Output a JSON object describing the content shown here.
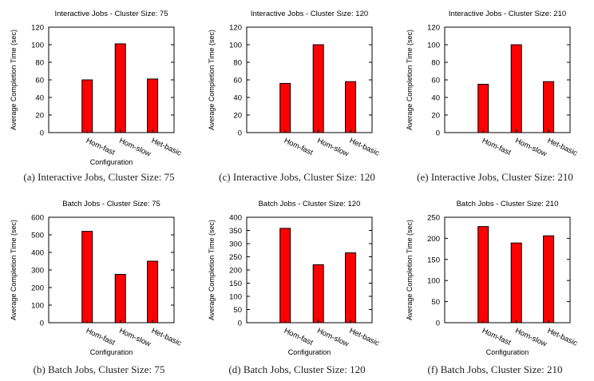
{
  "chart_data": [
    {
      "type": "bar",
      "title": "Interactive Jobs - Cluster Size: 75",
      "xlabel": "Configuration",
      "ylabel": "Average Completion Time (sec)",
      "categories": [
        "Hom-fast",
        "Hom-slow",
        "Het-basic"
      ],
      "values": [
        60,
        101,
        61
      ],
      "ylim": [
        0,
        120
      ],
      "yticks": [
        0,
        20,
        40,
        60,
        80,
        100,
        120
      ],
      "color": "#ff0000",
      "grid": false,
      "caption": "(a) Interactive Jobs, Cluster Size: 75"
    },
    {
      "type": "bar",
      "title": "Interactive Jobs - Cluster Size: 120",
      "xlabel": "",
      "ylabel": "Average Completion Time (sec)",
      "categories": [
        "Hom-fast",
        "Hom-slow",
        "Het-basic"
      ],
      "values": [
        56,
        100,
        58
      ],
      "ylim": [
        0,
        120
      ],
      "yticks": [
        0,
        20,
        40,
        60,
        80,
        100,
        120
      ],
      "color": "#ff0000",
      "grid": false,
      "caption": "(c) Interactive Jobs, Cluster Size: 120"
    },
    {
      "type": "bar",
      "title": "Interactive Jobs - Cluster Size: 210",
      "xlabel": "",
      "ylabel": "Average Completion Time (sec)",
      "categories": [
        "Hom-fast",
        "Hom-slow",
        "Het-basic"
      ],
      "values": [
        55,
        100,
        58
      ],
      "ylim": [
        0,
        120
      ],
      "yticks": [
        0,
        20,
        40,
        60,
        80,
        100,
        120
      ],
      "color": "#ff0000",
      "grid": false,
      "caption": "(e) Interactive Jobs, Cluster Size: 210"
    },
    {
      "type": "bar",
      "title": "Batch Jobs - Cluster Size: 75",
      "xlabel": "Configuration",
      "ylabel": "Average Completion Time (sec)",
      "categories": [
        "Hom-fast",
        "Hom-slow",
        "Het-basic"
      ],
      "values": [
        520,
        275,
        350
      ],
      "ylim": [
        0,
        600
      ],
      "yticks": [
        0,
        100,
        200,
        300,
        400,
        500,
        600
      ],
      "color": "#ff0000",
      "grid": false,
      "caption": "(b) Batch Jobs, Cluster Size: 75"
    },
    {
      "type": "bar",
      "title": "Batch Jobs - Cluster Size: 120",
      "xlabel": "Configuration",
      "ylabel": "Average Completion Time (sec)",
      "categories": [
        "Hom-fast",
        "Hom-slow",
        "Het-basic"
      ],
      "values": [
        358,
        220,
        265
      ],
      "ylim": [
        0,
        400
      ],
      "yticks": [
        0,
        50,
        100,
        150,
        200,
        250,
        300,
        350,
        400
      ],
      "color": "#ff0000",
      "grid": false,
      "caption": "(d) Batch Jobs, Cluster Size: 120"
    },
    {
      "type": "bar",
      "title": "Batch Jobs - Cluster Size: 210",
      "xlabel": "Configuration",
      "ylabel": "Average Completion Time (sec)",
      "categories": [
        "Hom-fast",
        "Hom-slow",
        "Het-basic"
      ],
      "values": [
        228,
        189,
        206
      ],
      "ylim": [
        0,
        250
      ],
      "yticks": [
        0,
        50,
        100,
        150,
        200,
        250
      ],
      "color": "#ff0000",
      "grid": false,
      "caption": "(f) Batch Jobs, Cluster Size: 210"
    }
  ]
}
